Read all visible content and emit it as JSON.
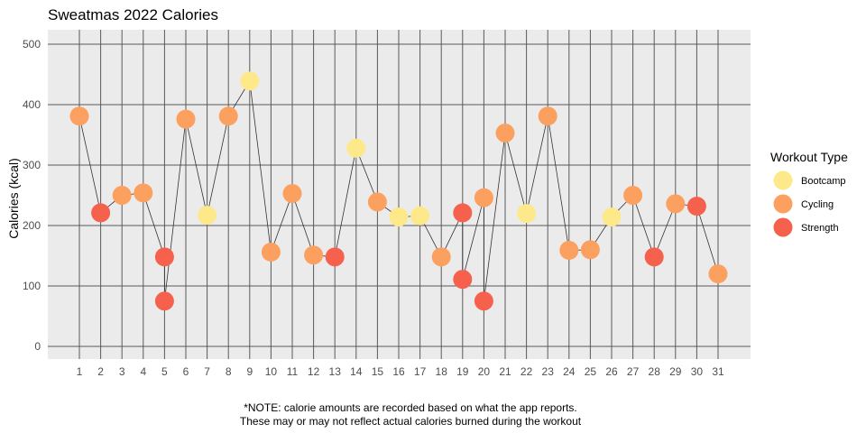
{
  "chart_data": {
    "type": "scatter",
    "title": "Sweatmas 2022 Calories",
    "xlabel": "",
    "ylabel": "Calories (kcal)",
    "ylim": [
      0,
      500
    ],
    "yticks": [
      0,
      100,
      200,
      300,
      400,
      500
    ],
    "xticks": [
      1,
      2,
      3,
      4,
      5,
      6,
      7,
      8,
      9,
      10,
      11,
      12,
      13,
      14,
      15,
      16,
      17,
      18,
      19,
      20,
      21,
      22,
      23,
      24,
      25,
      26,
      27,
      28,
      29,
      30,
      31
    ],
    "xlim": [
      0.2,
      32.5
    ],
    "connecting_line": true,
    "legend": {
      "title": "Workout Type",
      "position": "right",
      "entries": [
        {
          "name": "Bootcamp",
          "color": "#FEE98A"
        },
        {
          "name": "Cycling",
          "color": "#FCA060"
        },
        {
          "name": "Strength",
          "color": "#F5614C"
        }
      ]
    },
    "points": [
      {
        "x": 1,
        "y": 381,
        "type": "Cycling"
      },
      {
        "x": 2,
        "y": 221,
        "type": "Strength"
      },
      {
        "x": 3,
        "y": 250,
        "type": "Cycling"
      },
      {
        "x": 4,
        "y": 254,
        "type": "Cycling"
      },
      {
        "x": 5,
        "y": 148,
        "type": "Strength"
      },
      {
        "x": 5,
        "y": 75,
        "type": "Strength"
      },
      {
        "x": 6,
        "y": 376,
        "type": "Cycling"
      },
      {
        "x": 7,
        "y": 217,
        "type": "Bootcamp"
      },
      {
        "x": 8,
        "y": 381,
        "type": "Cycling"
      },
      {
        "x": 9,
        "y": 439,
        "type": "Bootcamp"
      },
      {
        "x": 10,
        "y": 156,
        "type": "Cycling"
      },
      {
        "x": 11,
        "y": 253,
        "type": "Cycling"
      },
      {
        "x": 12,
        "y": 151,
        "type": "Cycling"
      },
      {
        "x": 13,
        "y": 148,
        "type": "Strength"
      },
      {
        "x": 14,
        "y": 328,
        "type": "Bootcamp"
      },
      {
        "x": 15,
        "y": 239,
        "type": "Cycling"
      },
      {
        "x": 16,
        "y": 214,
        "type": "Bootcamp"
      },
      {
        "x": 17,
        "y": 216,
        "type": "Bootcamp"
      },
      {
        "x": 18,
        "y": 148,
        "type": "Cycling"
      },
      {
        "x": 19,
        "y": 221,
        "type": "Strength"
      },
      {
        "x": 19,
        "y": 111,
        "type": "Strength"
      },
      {
        "x": 20,
        "y": 246,
        "type": "Cycling"
      },
      {
        "x": 20,
        "y": 75,
        "type": "Strength"
      },
      {
        "x": 21,
        "y": 353,
        "type": "Cycling"
      },
      {
        "x": 22,
        "y": 220,
        "type": "Bootcamp"
      },
      {
        "x": 23,
        "y": 381,
        "type": "Cycling"
      },
      {
        "x": 24,
        "y": 159,
        "type": "Cycling"
      },
      {
        "x": 25,
        "y": 160,
        "type": "Cycling"
      },
      {
        "x": 26,
        "y": 214,
        "type": "Bootcamp"
      },
      {
        "x": 27,
        "y": 250,
        "type": "Cycling"
      },
      {
        "x": 28,
        "y": 148,
        "type": "Strength"
      },
      {
        "x": 29,
        "y": 236,
        "type": "Cycling"
      },
      {
        "x": 30,
        "y": 232,
        "type": "Strength"
      },
      {
        "x": 31,
        "y": 120,
        "type": "Cycling"
      }
    ],
    "colors": {
      "panel": "#EBEBEB",
      "grid": "#5A5A5A",
      "line": "#333333"
    }
  },
  "note": {
    "line1": "*NOTE: calorie amounts are recorded based on what the app reports.",
    "line2": "These may or may not reflect actual calories burned during the workout"
  }
}
